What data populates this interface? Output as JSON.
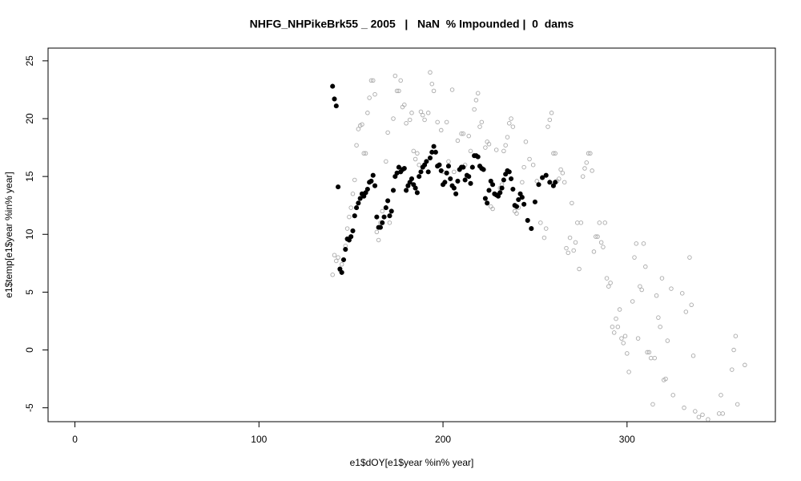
{
  "chart_data": {
    "type": "scatter",
    "title": "NHFG_NHPikeBrk55 _ 2005   |   NaN  % Impounded |  0  dams",
    "xlabel": "e1$dOY[e1$year %in% year]",
    "ylabel": "e1$temp[e1$year %in% year]",
    "xlim": [
      -14.6,
      380.6
    ],
    "ylim": [
      -6.2,
      26.1
    ],
    "xticks": [
      0,
      100,
      200,
      300
    ],
    "yticks": [
      -5,
      0,
      5,
      10,
      15,
      20,
      25
    ],
    "series": [
      {
        "color": "#aaaaaa",
        "marker": "open",
        "x": [
          140,
          141,
          142,
          143,
          144,
          145,
          147,
          148,
          149,
          150,
          151,
          152,
          153,
          154,
          155,
          156,
          157,
          158,
          159,
          160,
          161,
          162,
          163,
          164,
          165,
          166,
          167,
          169,
          170,
          171,
          173,
          174,
          175,
          176,
          177,
          178,
          179,
          180,
          182,
          183,
          184,
          185,
          186,
          187,
          188,
          189,
          190,
          192,
          193,
          194,
          195,
          197,
          199,
          200,
          202,
          203,
          205,
          206,
          208,
          210,
          211,
          212,
          214,
          215,
          217,
          218,
          219,
          220,
          221,
          223,
          224,
          225,
          226,
          227,
          229,
          230,
          231,
          232,
          233,
          234,
          235,
          236,
          237,
          238,
          239,
          240,
          241,
          243,
          244,
          245,
          247,
          249,
          251,
          253,
          255,
          256,
          257,
          258,
          259,
          260,
          261,
          262,
          263,
          264,
          265,
          266,
          267,
          268,
          269,
          270,
          271,
          272,
          273,
          274,
          275,
          276,
          277,
          278,
          279,
          280,
          281,
          282,
          283,
          284,
          285,
          286,
          287,
          288,
          289,
          290,
          291,
          292,
          293,
          294,
          295,
          296,
          297,
          298,
          299,
          300,
          301,
          303,
          304,
          305,
          306,
          307,
          308,
          309,
          310,
          311,
          312,
          313,
          314,
          315,
          316,
          317,
          318,
          319,
          320,
          321,
          322,
          324,
          325,
          330,
          331,
          332,
          334,
          335,
          336,
          337,
          339,
          341,
          344,
          350,
          351,
          352,
          357,
          358,
          359,
          360,
          364
        ],
        "values": [
          6.5,
          8.2,
          7.7,
          8.0,
          6.9,
          7.4,
          9.0,
          10.5,
          11.5,
          12.3,
          13.5,
          14.7,
          17.7,
          19.1,
          19.4,
          19.5,
          17.0,
          17.0,
          20.5,
          21.8,
          23.3,
          23.3,
          22.1,
          10.2,
          9.5,
          11.0,
          12.0,
          16.3,
          18.8,
          11.0,
          20.0,
          23.7,
          22.4,
          22.4,
          23.3,
          21.0,
          21.2,
          19.6,
          19.9,
          20.5,
          17.2,
          16.5,
          17.0,
          16.0,
          20.6,
          20.3,
          19.9,
          20.5,
          24.0,
          23.0,
          22.4,
          19.7,
          19.0,
          15.4,
          19.7,
          16.3,
          22.5,
          15.4,
          18.1,
          18.7,
          18.7,
          16.0,
          18.5,
          17.2,
          20.8,
          21.6,
          22.2,
          19.3,
          19.7,
          17.5,
          18.0,
          17.8,
          12.4,
          12.2,
          17.3,
          13.3,
          14.0,
          14.3,
          17.2,
          17.7,
          18.4,
          19.6,
          20.0,
          19.3,
          12.0,
          11.8,
          12.3,
          14.5,
          15.8,
          18.0,
          16.5,
          16.0,
          14.6,
          11.0,
          9.7,
          10.5,
          19.3,
          19.9,
          20.5,
          17.0,
          17.0,
          14.6,
          14.8,
          15.6,
          15.3,
          14.5,
          8.8,
          8.4,
          9.7,
          12.7,
          8.6,
          9.3,
          11.0,
          7.0,
          11.0,
          15.0,
          15.7,
          16.2,
          17.0,
          17.0,
          15.5,
          8.5,
          9.8,
          9.8,
          11.0,
          9.3,
          8.9,
          11.0,
          6.2,
          5.5,
          5.8,
          2.0,
          1.5,
          2.7,
          2.0,
          3.5,
          1.0,
          0.6,
          1.2,
          -0.3,
          -1.9,
          4.2,
          8.0,
          9.2,
          1.0,
          5.5,
          5.2,
          9.2,
          7.2,
          -0.2,
          -0.2,
          -0.7,
          -4.7,
          -0.7,
          4.7,
          2.8,
          2.0,
          6.2,
          -2.6,
          -2.5,
          0.8,
          5.3,
          -3.9,
          4.9,
          -5.0,
          3.3,
          8.0,
          3.9,
          -0.5,
          -5.3,
          -5.8,
          -5.6,
          -6.0,
          -5.5,
          -3.9,
          -5.5,
          -1.7,
          0.0,
          1.2,
          -4.7,
          -1.3
        ]
      },
      {
        "color": "#000000",
        "marker": "filled",
        "x": [
          140,
          141,
          142,
          143,
          144,
          145,
          146,
          147,
          148,
          149,
          150,
          151,
          152,
          153,
          154,
          155,
          156,
          157,
          158,
          159,
          160,
          161,
          162,
          163,
          164,
          165,
          166,
          167,
          168,
          169,
          170,
          171,
          172,
          173,
          174,
          175,
          176,
          177,
          178,
          179,
          180,
          181,
          182,
          183,
          184,
          185,
          186,
          187,
          188,
          189,
          190,
          191,
          192,
          193,
          194,
          195,
          196,
          197,
          198,
          199,
          200,
          201,
          202,
          203,
          204,
          205,
          206,
          207,
          208,
          209,
          210,
          211,
          212,
          213,
          214,
          215,
          216,
          217,
          218,
          219,
          220,
          221,
          222,
          223,
          224,
          225,
          226,
          227,
          228,
          229,
          230,
          231,
          232,
          233,
          234,
          235,
          236,
          237,
          238,
          239,
          240,
          241,
          242,
          243,
          244,
          246,
          248,
          250,
          252,
          254,
          256,
          258,
          260,
          261
        ],
        "values": [
          22.8,
          21.7,
          21.1,
          14.1,
          7.0,
          6.7,
          7.8,
          8.7,
          9.6,
          9.5,
          9.8,
          10.3,
          11.6,
          12.3,
          12.7,
          13.1,
          13.5,
          13.3,
          13.6,
          13.9,
          14.5,
          14.6,
          15.1,
          14.2,
          11.5,
          10.6,
          10.6,
          11.0,
          11.5,
          12.3,
          12.9,
          11.6,
          12.0,
          13.8,
          15.0,
          15.3,
          15.8,
          15.4,
          15.6,
          15.7,
          13.8,
          14.2,
          14.5,
          14.8,
          14.3,
          14.0,
          13.6,
          15.0,
          15.4,
          15.8,
          16.0,
          16.3,
          15.4,
          16.6,
          17.1,
          17.6,
          17.1,
          15.9,
          16.0,
          15.5,
          14.3,
          14.5,
          15.3,
          15.9,
          14.8,
          14.2,
          14.0,
          13.5,
          14.6,
          15.6,
          15.8,
          15.8,
          14.7,
          15.1,
          15.0,
          14.4,
          15.8,
          16.8,
          16.8,
          16.7,
          15.9,
          15.7,
          15.6,
          13.1,
          12.7,
          13.8,
          14.6,
          14.3,
          13.5,
          13.4,
          13.3,
          13.6,
          14.0,
          14.7,
          15.2,
          15.5,
          15.4,
          14.8,
          13.9,
          12.5,
          12.4,
          13.0,
          13.5,
          13.2,
          12.6,
          11.2,
          10.5,
          12.8,
          14.3,
          14.9,
          15.1,
          14.5,
          14.2,
          14.5
        ]
      }
    ]
  }
}
